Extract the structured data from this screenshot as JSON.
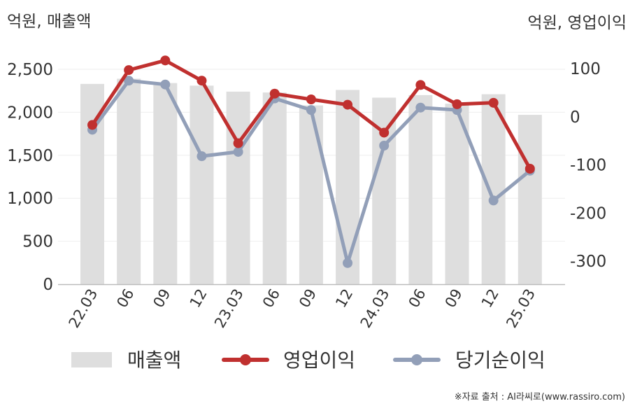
{
  "chart_data": {
    "type": "bar+line",
    "left_unit": "억원, 매출액",
    "right_unit": "억원, 영업이익",
    "categories": [
      "22.03",
      "06",
      "09",
      "12",
      "23.03",
      "06",
      "09",
      "12",
      "24.03",
      "06",
      "09",
      "12",
      "25.03"
    ],
    "y_left": {
      "min": 0,
      "max": 2500,
      "ticks": [
        "0",
        "500",
        "1,000",
        "1,500",
        "2,000",
        "2,500"
      ],
      "tick_values": [
        0,
        500,
        1000,
        1500,
        2000,
        2500
      ],
      "grid": true
    },
    "y_right": {
      "min": -350,
      "max": 100,
      "ticks": [
        "100",
        "0",
        "-100",
        "-200",
        "-300"
      ],
      "tick_values": [
        100,
        0,
        -100,
        -200,
        -300
      ]
    },
    "series": [
      {
        "name": "매출액",
        "type": "bar",
        "axis": "left",
        "color": "#dedede",
        "values": [
          2330,
          2390,
          2340,
          2310,
          2240,
          2230,
          2080,
          2260,
          2170,
          2200,
          2100,
          2210,
          1970
        ]
      },
      {
        "name": "영업이익",
        "type": "line",
        "axis": "right",
        "color": "#c0302f",
        "values": [
          -17,
          97,
          117,
          75,
          -55,
          48,
          36,
          25,
          -33,
          66,
          26,
          29,
          -108
        ]
      },
      {
        "name": "당기순이익",
        "type": "line",
        "axis": "right",
        "color": "#929fb8",
        "values": [
          -27,
          75,
          67,
          -82,
          -73,
          38,
          14,
          -304,
          -60,
          19,
          14,
          -174,
          -112
        ]
      }
    ],
    "legend_position": "bottom",
    "source": "※자료 출처 : AI라씨로(www.rassiro.com)"
  }
}
